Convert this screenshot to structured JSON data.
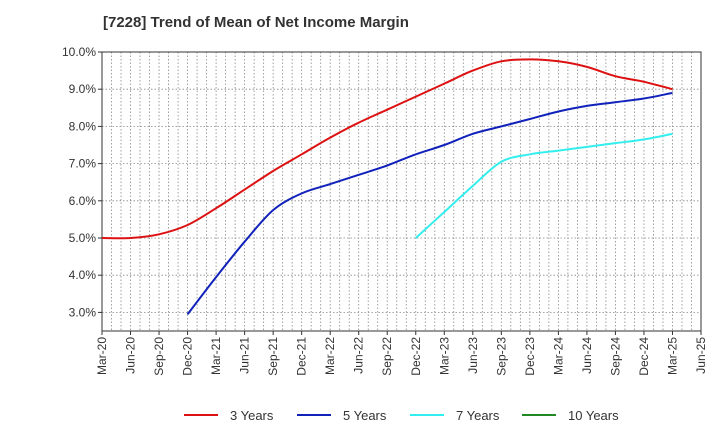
{
  "title": "[7228]  Trend of Mean of Net Income Margin",
  "chart_data": {
    "type": "line",
    "title": "[7228]  Trend of Mean of Net Income Margin",
    "xlabel": "",
    "ylabel": "",
    "x_ticks": [
      "Mar-20",
      "Jun-20",
      "Sep-20",
      "Dec-20",
      "Mar-21",
      "Jun-21",
      "Sep-21",
      "Dec-21",
      "Mar-22",
      "Jun-22",
      "Sep-22",
      "Dec-22",
      "Mar-23",
      "Jun-23",
      "Sep-23",
      "Dec-23",
      "Mar-24",
      "Jun-24",
      "Sep-24",
      "Dec-24",
      "Mar-25",
      "Jun-25"
    ],
    "y_ticks": [
      "3.0%",
      "4.0%",
      "5.0%",
      "6.0%",
      "7.0%",
      "8.0%",
      "9.0%",
      "10.0%"
    ],
    "ylim": [
      2.5,
      10.0
    ],
    "grid": true,
    "legend_position": "bottom",
    "series": [
      {
        "name": "3 Years",
        "color": "#dd1111",
        "points": [
          [
            "Mar-20",
            5.0
          ],
          [
            "Jun-20",
            5.0
          ],
          [
            "Sep-20",
            5.1
          ],
          [
            "Dec-20",
            5.35
          ],
          [
            "Mar-21",
            5.8
          ],
          [
            "Jun-21",
            6.3
          ],
          [
            "Sep-21",
            6.8
          ],
          [
            "Dec-21",
            7.25
          ],
          [
            "Mar-22",
            7.7
          ],
          [
            "Jun-22",
            8.1
          ],
          [
            "Sep-22",
            8.45
          ],
          [
            "Dec-22",
            8.8
          ],
          [
            "Mar-23",
            9.15
          ],
          [
            "Jun-23",
            9.5
          ],
          [
            "Sep-23",
            9.75
          ],
          [
            "Dec-23",
            9.8
          ],
          [
            "Mar-24",
            9.75
          ],
          [
            "Jun-24",
            9.6
          ],
          [
            "Sep-24",
            9.35
          ],
          [
            "Dec-24",
            9.2
          ],
          [
            "Mar-25",
            9.0
          ]
        ]
      },
      {
        "name": "5 Years",
        "color": "#1122bb",
        "points": [
          [
            "Dec-20",
            2.95
          ],
          [
            "Mar-21",
            3.95
          ],
          [
            "Jun-21",
            4.9
          ],
          [
            "Sep-21",
            5.75
          ],
          [
            "Dec-21",
            6.2
          ],
          [
            "Mar-22",
            6.45
          ],
          [
            "Jun-22",
            6.7
          ],
          [
            "Sep-22",
            6.95
          ],
          [
            "Dec-22",
            7.25
          ],
          [
            "Mar-23",
            7.5
          ],
          [
            "Jun-23",
            7.8
          ],
          [
            "Sep-23",
            8.0
          ],
          [
            "Dec-23",
            8.2
          ],
          [
            "Mar-24",
            8.4
          ],
          [
            "Jun-24",
            8.55
          ],
          [
            "Sep-24",
            8.65
          ],
          [
            "Dec-24",
            8.75
          ],
          [
            "Mar-25",
            8.9
          ]
        ]
      },
      {
        "name": "7 Years",
        "color": "#33eeee",
        "points": [
          [
            "Dec-22",
            5.0
          ],
          [
            "Mar-23",
            5.7
          ],
          [
            "Jun-23",
            6.4
          ],
          [
            "Sep-23",
            7.05
          ],
          [
            "Dec-23",
            7.25
          ],
          [
            "Mar-24",
            7.35
          ],
          [
            "Jun-24",
            7.45
          ],
          [
            "Sep-24",
            7.55
          ],
          [
            "Dec-24",
            7.65
          ],
          [
            "Mar-25",
            7.8
          ]
        ]
      },
      {
        "name": "10 Years",
        "color": "#228822",
        "points": []
      }
    ]
  }
}
